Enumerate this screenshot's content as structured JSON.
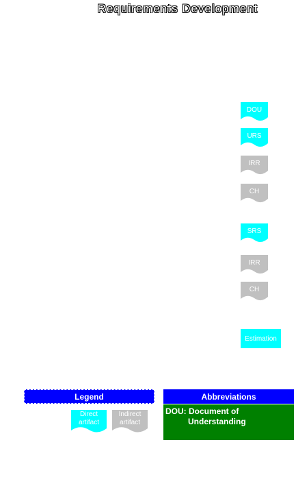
{
  "title": "Requirements Development",
  "colors": {
    "direct": "#00ffff",
    "indirect": "#c0c0c0",
    "legend_header": "#0000ff",
    "abbreviation_body": "#008000"
  },
  "artifacts": [
    {
      "label": "DOU",
      "kind": "direct"
    },
    {
      "label": "URS",
      "kind": "direct"
    },
    {
      "label": "IRR",
      "kind": "indirect"
    },
    {
      "label": "CH",
      "kind": "indirect"
    },
    {
      "label": "SRS",
      "kind": "direct"
    },
    {
      "label": "IRR",
      "kind": "indirect"
    },
    {
      "label": "CH",
      "kind": "indirect"
    }
  ],
  "estimation": {
    "label": "Estimation"
  },
  "legend": {
    "title": "Legend",
    "direct_label_line1": "Direct",
    "direct_label_line2": "artifact",
    "indirect_label_line1": "Indirect",
    "indirect_label_line2": "artifact"
  },
  "abbreviations": {
    "title": "Abbreviations",
    "line1": "DOU: Document of",
    "line2": "Understanding"
  }
}
